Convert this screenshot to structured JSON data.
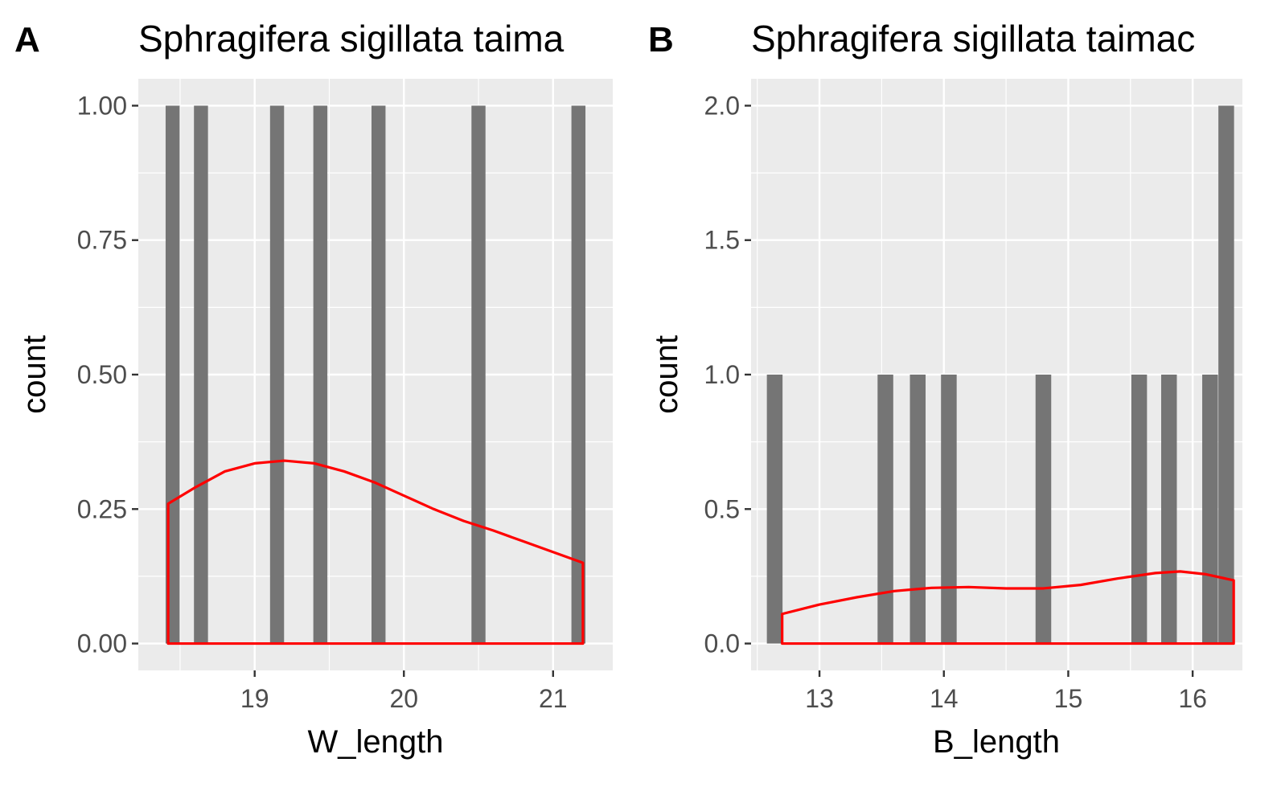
{
  "chart_data": [
    {
      "panel": "A",
      "type": "bar",
      "title": "Sphragifera sigillata taima",
      "xlabel": "W_length",
      "ylabel": "count",
      "xlim": [
        18.22,
        21.4
      ],
      "ylim": [
        -0.05,
        1.05
      ],
      "x_ticks": [
        19,
        20,
        21
      ],
      "x_tick_labels": [
        "19",
        "20",
        "21"
      ],
      "y_ticks": [
        0,
        0.25,
        0.5,
        0.75,
        1.0
      ],
      "y_tick_labels": [
        "0.00",
        "0.25",
        "0.50",
        "0.75",
        "1.00"
      ],
      "grid": true,
      "bar_color": "#757575",
      "bar_width": 0.094,
      "bars": [
        {
          "x": 18.45,
          "count": 1
        },
        {
          "x": 18.64,
          "count": 1
        },
        {
          "x": 19.15,
          "count": 1
        },
        {
          "x": 19.44,
          "count": 1
        },
        {
          "x": 19.83,
          "count": 1
        },
        {
          "x": 20.5,
          "count": 1
        },
        {
          "x": 21.17,
          "count": 1
        }
      ],
      "density": {
        "color": "#ff0000",
        "x": [
          18.42,
          18.6,
          18.8,
          19.0,
          19.2,
          19.4,
          19.6,
          19.8,
          20.0,
          20.2,
          20.4,
          20.6,
          20.8,
          21.0,
          21.2
        ],
        "y": [
          0.26,
          0.29,
          0.32,
          0.335,
          0.34,
          0.335,
          0.32,
          0.3,
          0.275,
          0.25,
          0.228,
          0.21,
          0.19,
          0.17,
          0.15
        ]
      }
    },
    {
      "panel": "B",
      "type": "bar",
      "title": "Sphragifera sigillata taimac",
      "xlabel": "B_length",
      "ylabel": "count",
      "xlim": [
        12.45,
        16.4
      ],
      "ylim": [
        -0.1,
        2.1
      ],
      "x_ticks": [
        13,
        14,
        15,
        16
      ],
      "x_tick_labels": [
        "13",
        "14",
        "15",
        "16"
      ],
      "y_ticks": [
        0,
        0.5,
        1.0,
        1.5,
        2.0
      ],
      "y_tick_labels": [
        "0.0",
        "0.5",
        "1.0",
        "1.5",
        "2.0"
      ],
      "grid": true,
      "bar_color": "#757575",
      "bar_width": 0.126,
      "bars": [
        {
          "x": 12.64,
          "count": 1
        },
        {
          "x": 13.53,
          "count": 1
        },
        {
          "x": 13.79,
          "count": 1
        },
        {
          "x": 14.04,
          "count": 1
        },
        {
          "x": 14.8,
          "count": 1
        },
        {
          "x": 15.57,
          "count": 1
        },
        {
          "x": 15.81,
          "count": 1
        },
        {
          "x": 16.14,
          "count": 1
        },
        {
          "x": 16.27,
          "count": 2
        }
      ],
      "density": {
        "color": "#ff0000",
        "x": [
          12.7,
          13.0,
          13.3,
          13.6,
          13.9,
          14.2,
          14.5,
          14.8,
          15.1,
          15.4,
          15.7,
          15.9,
          16.1,
          16.33
        ],
        "y": [
          0.11,
          0.145,
          0.172,
          0.195,
          0.207,
          0.21,
          0.205,
          0.205,
          0.218,
          0.242,
          0.262,
          0.268,
          0.258,
          0.235
        ]
      }
    }
  ]
}
